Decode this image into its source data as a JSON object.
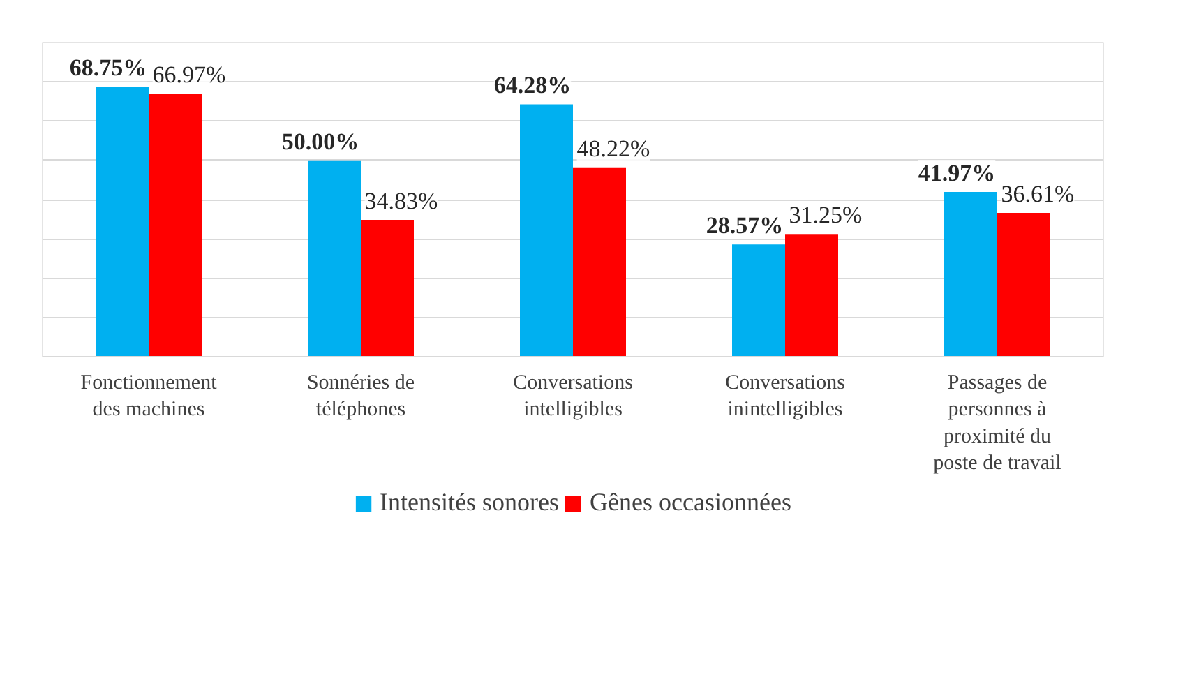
{
  "chart_data": {
    "type": "bar",
    "categories": [
      "Fonctionnement des machines",
      "Sonnéries de téléphones",
      "Conversations intelligibles",
      "Conversations inintelligibles",
      "Passages de personnes à proximité du poste de travail"
    ],
    "series": [
      {
        "name": "Intensités sonores",
        "color": "#00b0f0",
        "values": [
          68.75,
          50.0,
          64.28,
          28.57,
          41.97
        ],
        "value_labels": [
          "68.75%",
          "50.00%",
          "64.28%",
          "28.57%",
          "41.97%"
        ]
      },
      {
        "name": "Gênes occasionnées",
        "color": "#ff0000",
        "values": [
          66.97,
          34.83,
          48.22,
          31.25,
          36.61
        ],
        "value_labels": [
          "66.97%",
          "34.83%",
          "48.22%",
          "31.25%",
          "36.61%"
        ]
      }
    ],
    "ylim": [
      0,
      80
    ],
    "yticks": [
      {
        "value": 0,
        "label": null
      },
      {
        "value": 10,
        "label": null
      },
      {
        "value": 20,
        "label": null
      },
      {
        "value": 30,
        "label": null
      },
      {
        "value": 40,
        "label": null
      },
      {
        "value": 50,
        "label": null
      },
      {
        "value": 60,
        "label": null
      },
      {
        "value": 70,
        "label": null
      },
      {
        "value": 80,
        "label": null
      }
    ],
    "tick_labels": "x",
    "grid": "y",
    "legend": "bottom"
  }
}
